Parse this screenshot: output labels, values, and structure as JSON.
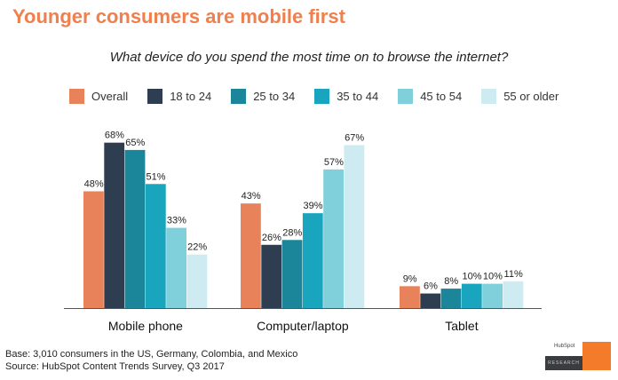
{
  "title": "Younger consumers are mobile first",
  "chart_data": {
    "type": "bar",
    "title": "What device do you spend the most time on to browse the internet?",
    "categories": [
      "Mobile phone",
      "Computer/laptop",
      "Tablet"
    ],
    "series": [
      {
        "name": "Overall",
        "color": "#E8825A",
        "values": [
          48,
          43,
          9
        ]
      },
      {
        "name": "18 to 24",
        "color": "#2E3E50",
        "values": [
          68,
          26,
          6
        ]
      },
      {
        "name": "25 to 34",
        "color": "#1B8599",
        "values": [
          65,
          28,
          8
        ]
      },
      {
        "name": "35 to 44",
        "color": "#18A5BD",
        "values": [
          51,
          39,
          10
        ]
      },
      {
        "name": "45 to 54",
        "color": "#80D0DC",
        "values": [
          33,
          57,
          10
        ]
      },
      {
        "name": "55 or older",
        "color": "#CDEBF0",
        "values": [
          22,
          67,
          11
        ]
      }
    ],
    "value_suffix": "%",
    "legend": "top",
    "grid": false
  },
  "footer": {
    "base": "Base: 3,010 consumers in the US, Germany, Colombia, and Mexico",
    "source": "Source: HubSpot Content Trends Survey, Q3 2017"
  },
  "logo": {
    "brand": "HubSpot",
    "label": "RESEARCH"
  }
}
